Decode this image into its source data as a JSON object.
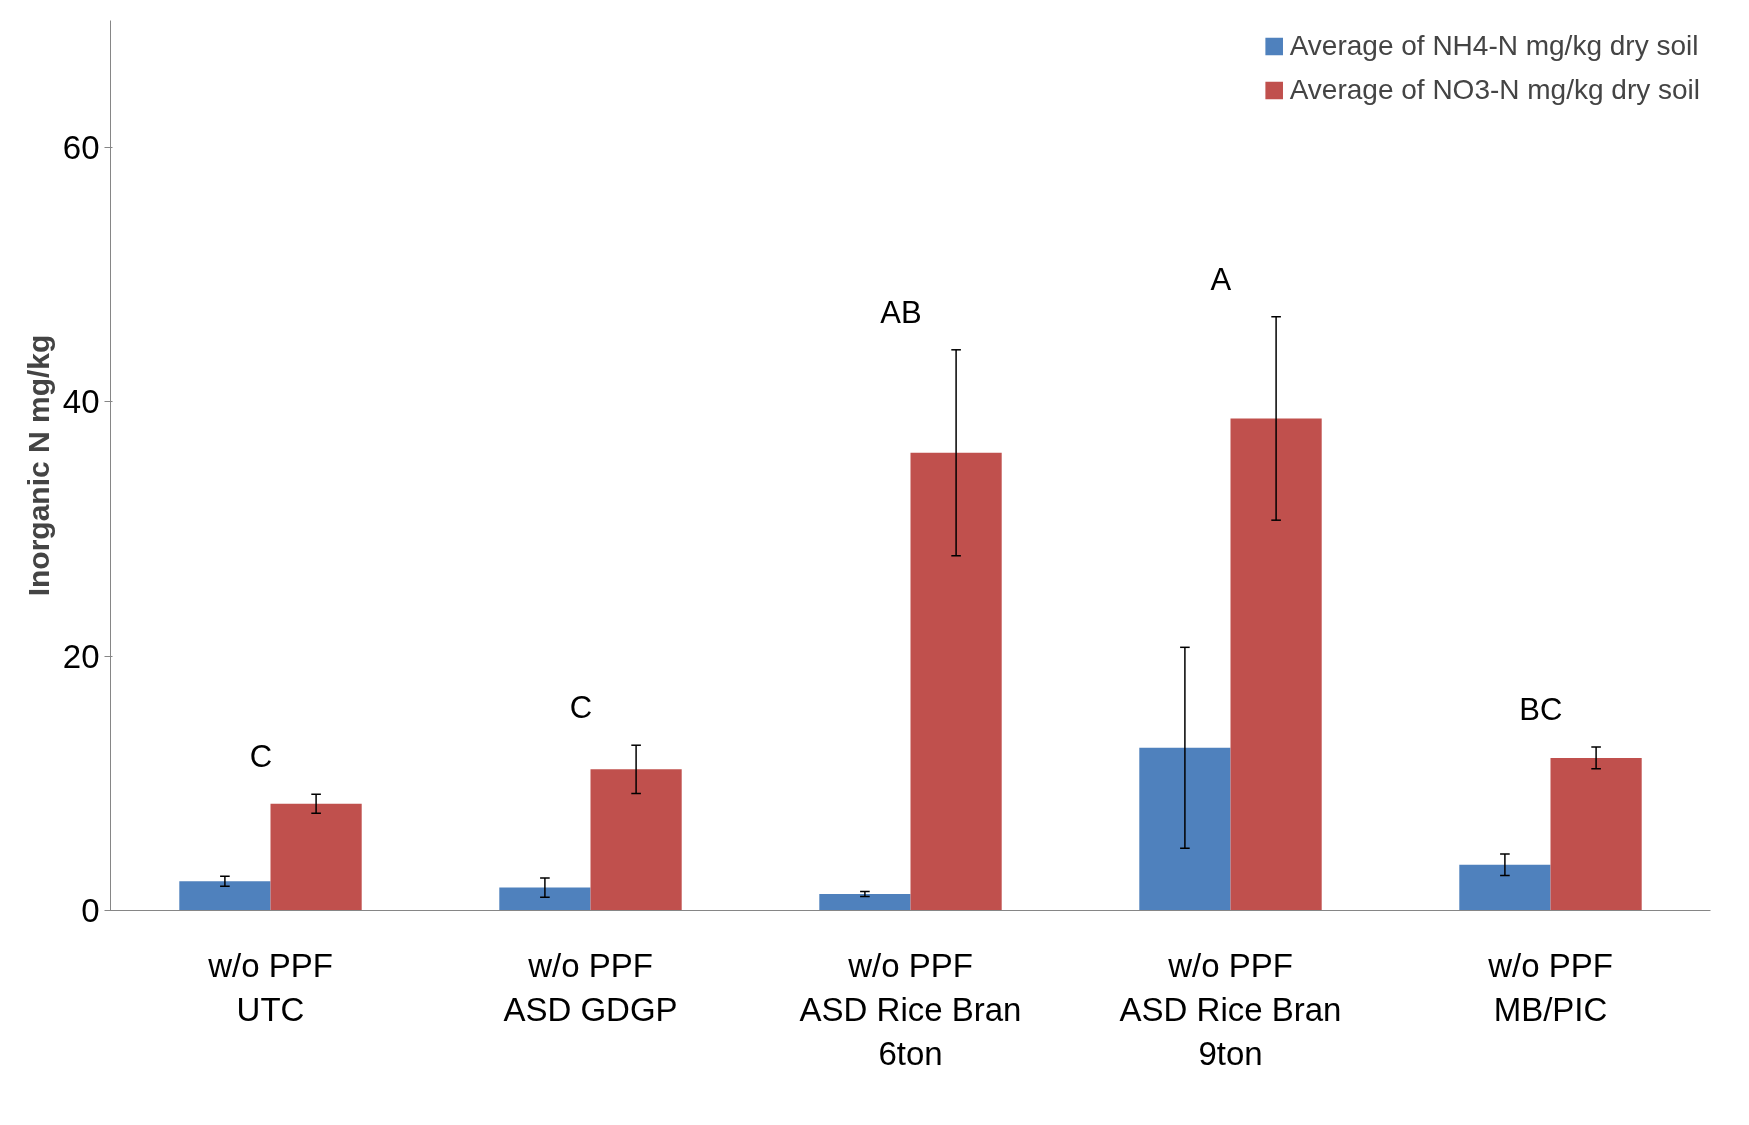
{
  "chart_data": {
    "type": "bar",
    "ylabel": "Inorganic N mg/kg",
    "categories": [
      "w/o PPF\nUTC",
      "w/o PPF\nASD GDGP",
      "w/o PPF\nASD Rice Bran\n6ton",
      "w/o PPF\nASD Rice Bran\n9ton",
      "w/o PPF\nMB/PIC"
    ],
    "series": [
      {
        "name": "Average of NH4-N mg/kg dry soil",
        "color": "#4f81bd",
        "values": [
          2.3,
          1.8,
          1.3,
          12.8,
          3.6
        ],
        "errors": [
          0.4,
          0.75,
          0.2,
          7.9,
          0.85
        ]
      },
      {
        "name": "Average of NO3-N mg/kg dry soil",
        "color": "#c0504d",
        "values": [
          8.4,
          11.1,
          36.0,
          38.7,
          12.0
        ],
        "errors": [
          0.75,
          1.9,
          8.1,
          8.0,
          0.85
        ]
      }
    ],
    "annotations": [
      "C",
      "C",
      "AB",
      "A",
      "BC"
    ],
    "ylim": [
      0,
      70
    ],
    "yticks": [
      0,
      20,
      40,
      60
    ],
    "grid": false,
    "legend": "top right"
  }
}
